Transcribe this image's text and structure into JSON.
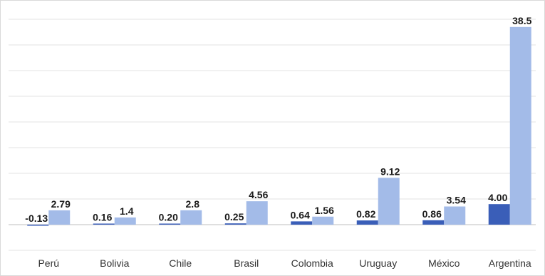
{
  "chart_data": {
    "type": "bar",
    "categories": [
      "Perú",
      "Bolivia",
      "Chile",
      "Brasil",
      "Colombia",
      "Uruguay",
      "México",
      "Argentina"
    ],
    "series": [
      {
        "values": [
          -0.13,
          0.16,
          0.2,
          0.25,
          0.64,
          0.82,
          0.86,
          4.0
        ],
        "labels": [
          "-0.13",
          "0.16",
          "0.20",
          "0.25",
          "0.64",
          "0.82",
          "0.86",
          "4.00"
        ],
        "color": "#3a5eb8"
      },
      {
        "values": [
          2.79,
          1.4,
          2.8,
          4.56,
          1.56,
          9.12,
          3.54,
          38.5
        ],
        "labels": [
          "2.79",
          "1.4",
          "2.8",
          "4.56",
          "1.56",
          "9.12",
          "3.54",
          "38.5"
        ],
        "color": "#a3bbe8"
      }
    ],
    "title": "",
    "xlabel": "",
    "ylabel": "",
    "ylim": [
      -5,
      40
    ],
    "grid": true,
    "legend": "none"
  }
}
